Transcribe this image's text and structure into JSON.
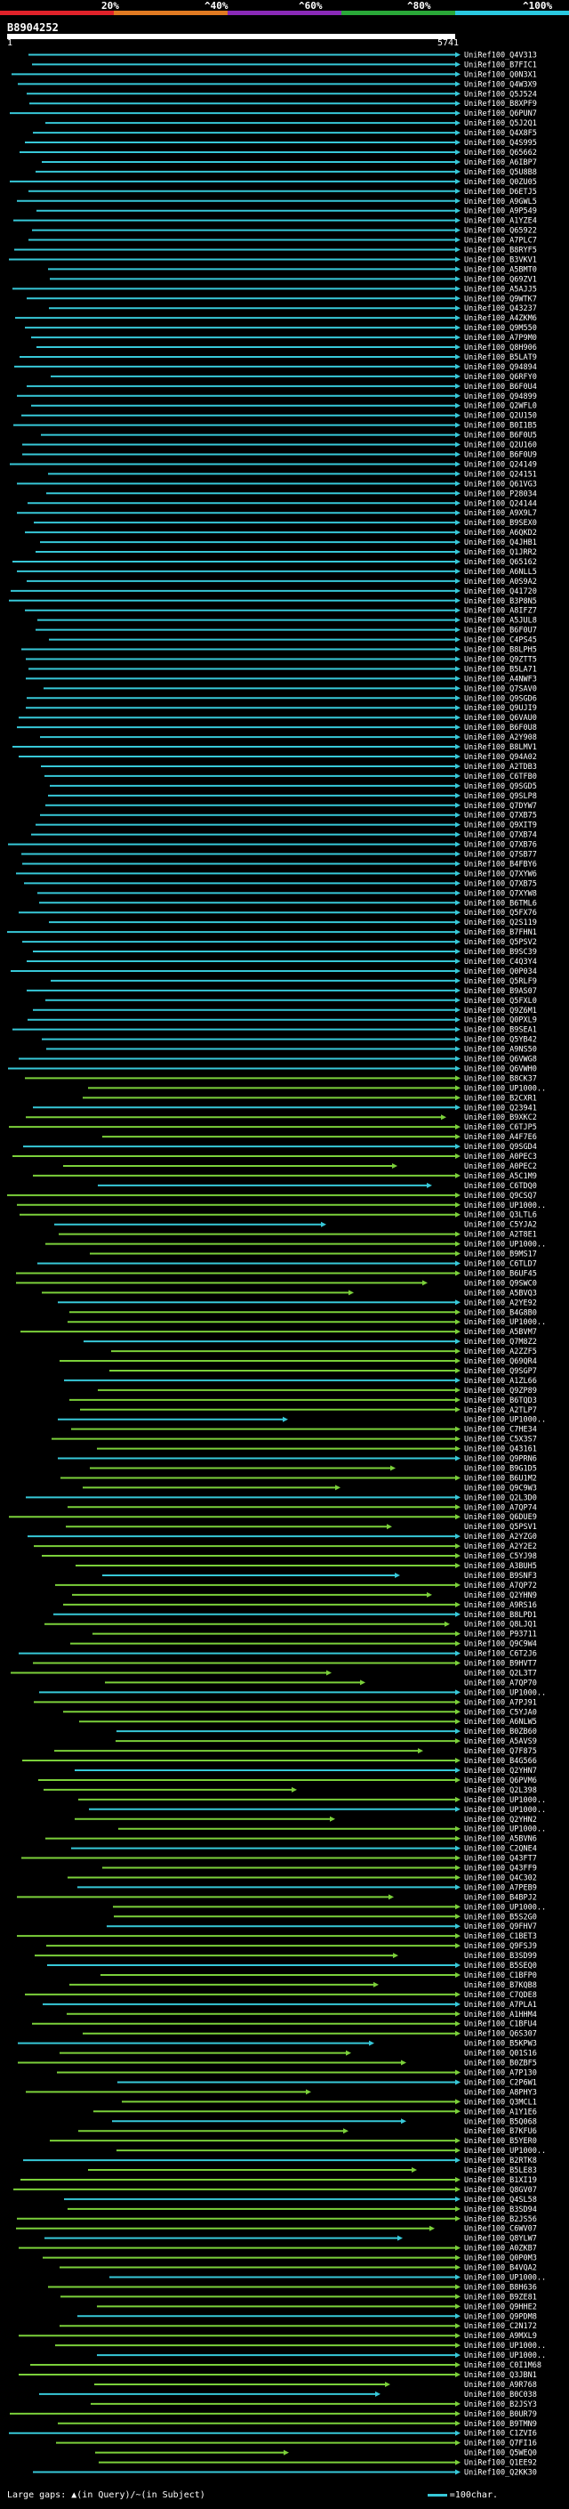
{
  "header": {
    "scale_labels": [
      "20%",
      "^40%",
      "^60%",
      "^80%",
      "^100%"
    ],
    "scale_colors": [
      "#e0222a",
      "#e07a22",
      "#8a2ab8",
      "#2aa838",
      "#2ac8e0"
    ],
    "query_id": "B8904252",
    "query_start": "1",
    "query_end": "5741"
  },
  "colors": {
    "high": "#37c8d8",
    "mid": "#7bd03a",
    "low": "#2aa838",
    "background": "#000000"
  },
  "hits": [
    "UniRef100_Q4V313",
    "UniRef100_B7FIC1",
    "UniRef100_Q0N3X1",
    "UniRef100_Q4W3X9",
    "UniRef100_Q5J524",
    "UniRef100_B8XPF9",
    "UniRef100_Q6PUN7",
    "UniRef100_Q5J2Q1",
    "UniRef100_Q4X8F5",
    "UniRef100_Q4S995",
    "UniRef100_Q65662",
    "UniRef100_A6IBP7",
    "UniRef100_Q5U8B8",
    "UniRef100_Q0ZU05",
    "UniRef100_D6ETJ5",
    "UniRef100_A9GWL5",
    "UniRef100_A9P549",
    "UniRef100_A1YZE4",
    "UniRef100_Q65922",
    "UniRef100_A7PLC7",
    "UniRef100_B8RYF5",
    "UniRef100_B3VKV1",
    "UniRef100_A5BMT0",
    "UniRef100_Q69ZV1",
    "UniRef100_A5AJJ5",
    "UniRef100_Q9WTK7",
    "UniRef100_Q43237",
    "UniRef100_A4ZKM6",
    "UniRef100_Q9M550",
    "UniRef100_A7P9M0",
    "UniRef100_Q8H906",
    "UniRef100_B5LAT9",
    "UniRef100_Q94894",
    "UniRef100_Q6RFY0",
    "UniRef100_B6F0U4",
    "UniRef100_Q94899",
    "UniRef100_Q2WFL0",
    "UniRef100_Q2U150",
    "UniRef100_B0I1B5",
    "UniRef100_B6F0U5",
    "UniRef100_Q2U160",
    "UniRef100_B6F0U9",
    "UniRef100_Q24149",
    "UniRef100_Q24151",
    "UniRef100_Q61VG3",
    "UniRef100_P28034",
    "UniRef100_Q24144",
    "UniRef100_A9X9L7",
    "UniRef100_B9SEX0",
    "UniRef100_A6QKD2",
    "UniRef100_Q4JHB1",
    "UniRef100_Q1JRR2",
    "UniRef100_Q65162",
    "UniRef100_A6NLL5",
    "UniRef100_A0S9A2",
    "UniRef100_Q41720",
    "UniRef100_B3P8N5",
    "UniRef100_A8IFZ7",
    "UniRef100_A5JUL8",
    "UniRef100_B6F0U7",
    "UniRef100_C4PS45",
    "UniRef100_B8LPH5",
    "UniRef100_Q9ZTT5",
    "UniRef100_B5LA71",
    "UniRef100_A4NWF3",
    "UniRef100_Q7SAV0",
    "UniRef100_Q9SGD6",
    "UniRef100_Q9UJI9",
    "UniRef100_Q6VAU0",
    "UniRef100_B6F0U8",
    "UniRef100_A2Y908",
    "UniRef100_B8LMV1",
    "UniRef100_Q94A02",
    "UniRef100_A2TDB3",
    "UniRef100_C6TFB0",
    "UniRef100_Q9SGD5",
    "UniRef100_Q9SLP8",
    "UniRef100_Q7DYW7",
    "UniRef100_Q7XB75",
    "UniRef100_Q9XIT9",
    "UniRef100_Q7XB74",
    "UniRef100_Q7XB76",
    "UniRef100_Q7SB77",
    "UniRef100_B4FBY6",
    "UniRef100_Q7XYW6",
    "UniRef100_Q7XB75",
    "UniRef100_Q7XYW8",
    "UniRef100_B6TML6",
    "UniRef100_Q5FX76",
    "UniRef100_Q2S119",
    "UniRef100_B7FHN1",
    "UniRef100_Q5PSV2",
    "UniRef100_B9SC39",
    "UniRef100_C4Q3Y4",
    "UniRef100_Q0P034",
    "UniRef100_Q5RLF9",
    "UniRef100_B9AS07",
    "UniRef100_Q5FXL0",
    "UniRef100_Q9Z6M1",
    "UniRef100_Q0PXL9",
    "UniRef100_B9SEA1",
    "UniRef100_Q5YB42",
    "UniRef100_A9NS50",
    "UniRef100_Q6VWG8",
    "UniRef100_Q6VWH0",
    "UniRef100_B8CK37",
    "UniRef100_UP1000..",
    "UniRef100_B2CXR1",
    "UniRef100_Q23941",
    "UniRef100_B9XKC2",
    "UniRef100_C6TJP5",
    "UniRef100_A4F7E6",
    "UniRef100_Q9SGD4",
    "UniRef100_A0PEC3",
    "UniRef100_A0PEC2",
    "UniRef100_A5C1M9",
    "UniRef100_C6TDQ0",
    "UniRef100_Q9CSQ7",
    "UniRef100_UP1000..",
    "UniRef100_Q3LTL6",
    "UniRef100_C5YJA2",
    "UniRef100_A2T8E1",
    "UniRef100_UP1000..",
    "UniRef100_B9MS17",
    "UniRef100_C6TLD7",
    "UniRef100_B6UF45",
    "UniRef100_Q9SWC0",
    "UniRef100_A5BVQ3",
    "UniRef100_A2YE92",
    "UniRef100_B4G8B0",
    "UniRef100_UP1000..",
    "UniRef100_A5BVM7",
    "UniRef100_Q7M8Z2",
    "UniRef100_A2ZZF5",
    "UniRef100_Q69QR4",
    "UniRef100_Q9SGP7",
    "UniRef100_A1ZL66",
    "UniRef100_Q9ZP89",
    "UniRef100_B6TQD3",
    "UniRef100_A2TLP7",
    "UniRef100_UP1000..",
    "UniRef100_C7HE34",
    "UniRef100_C5X3S7",
    "UniRef100_Q43161",
    "UniRef100_Q9PRN6",
    "UniRef100_B9G1D5",
    "UniRef100_B6U1M2",
    "UniRef100_Q9C9W3",
    "UniRef100_Q2L3D0",
    "UniRef100_A7QP74",
    "UniRef100_Q6DUE9",
    "UniRef100_Q5PSV1",
    "UniRef100_A2YZG0",
    "UniRef100_A2Y2E2",
    "UniRef100_C5YJ98",
    "UniRef100_A3BUH5",
    "UniRef100_B9SNF3",
    "UniRef100_A7QP72",
    "UniRef100_Q2YHN9",
    "UniRef100_A9RS16",
    "UniRef100_B8LPD1",
    "UniRef100_Q8LJQ1",
    "UniRef100_P93711",
    "UniRef100_Q9C9W4",
    "UniRef100_C6T2J6",
    "UniRef100_B9HVT7",
    "UniRef100_Q2L3T7",
    "UniRef100_A7QP70",
    "UniRef100_UP1000..",
    "UniRef100_A7PJ91",
    "UniRef100_C5YJA0",
    "UniRef100_A6NLW5",
    "UniRef100_B0ZB60",
    "UniRef100_A5AVS9",
    "UniRef100_Q7F875",
    "UniRef100_B4G566",
    "UniRef100_Q2YHN7",
    "UniRef100_Q6PVM6",
    "UniRef100_Q2L398",
    "UniRef100_UP1000..",
    "UniRef100_UP1000..",
    "UniRef100_Q2YHN2",
    "UniRef100_UP1000..",
    "UniRef100_A5BVN6",
    "UniRef100_C2QNE4",
    "UniRef100_Q43FT7",
    "UniRef100_Q43FF9",
    "UniRef100_Q4C302",
    "UniRef100_A7PEB9",
    "UniRef100_B4BPJ2",
    "UniRef100_UP1000..",
    "UniRef100_B5S2G0",
    "UniRef100_Q9FHV7",
    "UniRef100_C1BET3",
    "UniRef100_Q9FSJ9",
    "UniRef100_B3SD99",
    "UniRef100_B5SEQ0",
    "UniRef100_C1BFP0",
    "UniRef100_B7KQB8",
    "UniRef100_C7QDE8",
    "UniRef100_A7PLA1",
    "UniRef100_A1HHM4",
    "UniRef100_C1BFU4",
    "UniRef100_Q6S307",
    "UniRef100_B5KPW3",
    "UniRef100_Q01S16",
    "UniRef100_B0ZBF5",
    "UniRef100_A7P130",
    "UniRef100_C2P6W1",
    "UniRef100_A8PHY3",
    "UniRef100_Q3MCL1",
    "UniRef100_A1Y1E6",
    "UniRef100_B5Q068",
    "UniRef100_B7KFU6",
    "UniRef100_B5YER0",
    "UniRef100_UP1000..",
    "UniRef100_B2RTK8",
    "UniRef100_B5LE83",
    "UniRef100_B1XI19",
    "UniRef100_Q8GV07",
    "UniRef100_Q4SL58",
    "UniRef100_B3SD94",
    "UniRef100_B2JS56",
    "UniRef100_C6WV07",
    "UniRef100_Q8YLW7",
    "UniRef100_A0ZKB7",
    "UniRef100_Q0P0M3",
    "UniRef100_B4VQA2",
    "UniRef100_UP1000..",
    "UniRef100_B8H636",
    "UniRef100_B9ZE81",
    "UniRef100_Q9HHE2",
    "UniRef100_Q9PDM8",
    "UniRef100_C2N172",
    "UniRef100_A9MXL9",
    "UniRef100_UP1000..",
    "UniRef100_UP1000..",
    "UniRef100_C0I1M68",
    "UniRef100_Q3JBN1",
    "UniRef100_A9R768",
    "UniRef100_B0C038",
    "UniRef100_B2JSY3",
    "UniRef100_B0UR79",
    "UniRef100_B9TMN9",
    "UniRef100_C1ZVI6",
    "UniRef100_Q7FI16",
    "UniRef100_Q5WEQ0",
    "UniRef100_Q1EE92",
    "UniRef100_Q2KK30"
  ],
  "footer": {
    "gaps_label": "Large gaps: ",
    "gaps_query_symbol": "▲",
    "gaps_query_text": "(in Query)/",
    "gaps_subject_symbol": "~",
    "gaps_subject_text": "(in Subject)",
    "legend_text": "=100char."
  }
}
